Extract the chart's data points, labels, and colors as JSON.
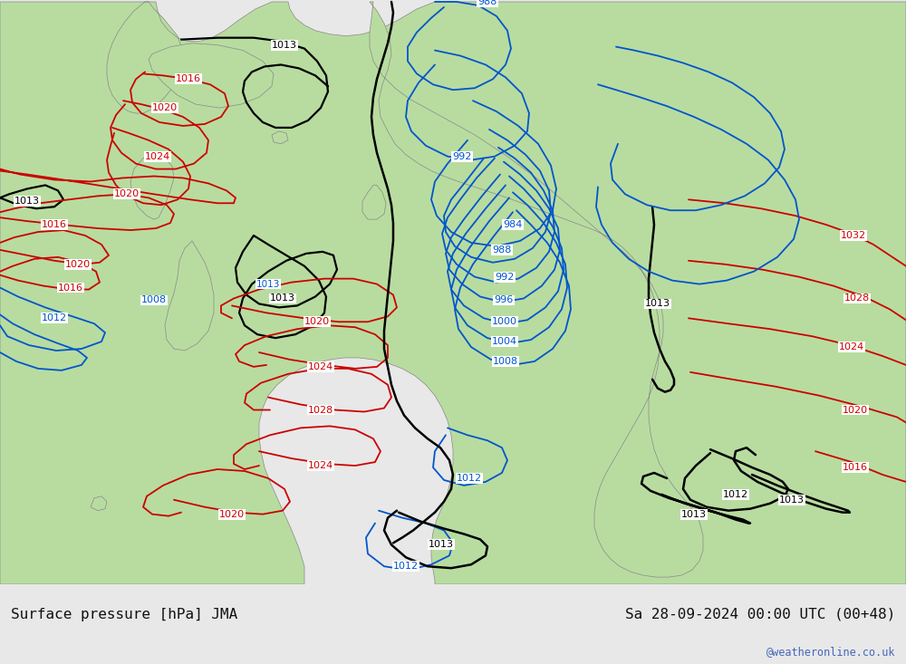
{
  "title_left": "Surface pressure [hPa] JMA",
  "title_right": "Sa 28-09-2024 00:00 UTC (00+48)",
  "watermark": "@weatheronline.co.uk",
  "sea_color": "#d0dce8",
  "land_color": "#b8dca0",
  "land_edge": "#888888",
  "fig_width": 10.0,
  "fig_height": 7.33,
  "dpi": 100,
  "bottom_bar_color": "#e8e8e8",
  "text_color": "#111111",
  "watermark_color": "#4466bb",
  "red": "#cc0000",
  "blue": "#0055cc",
  "black": "#000000"
}
